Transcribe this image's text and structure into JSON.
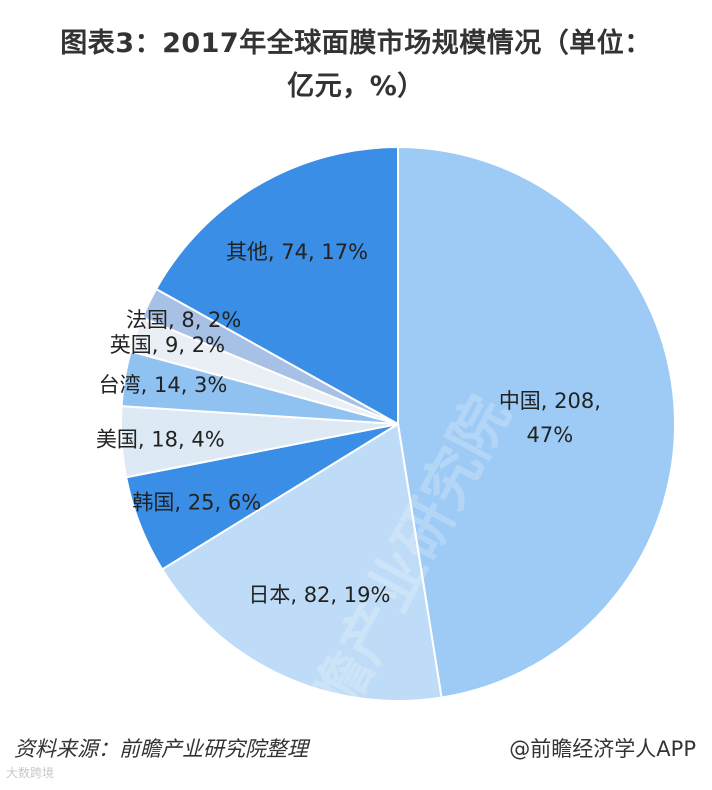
{
  "title": {
    "line1": "图表3：2017年全球面膜市场规模情况（单位：",
    "line2": "亿元，%）"
  },
  "chart_data": {
    "type": "pie",
    "unit": "亿元",
    "slices": [
      {
        "label": "中国",
        "value": 208,
        "percent": "47%",
        "color": "#9ecbf5"
      },
      {
        "label": "日本",
        "value": 82,
        "percent": "19%",
        "color": "#bedcf7"
      },
      {
        "label": "韩国",
        "value": 25,
        "percent": "6%",
        "color": "#3b8ee6"
      },
      {
        "label": "美国",
        "value": 18,
        "percent": "4%",
        "color": "#dde9f4"
      },
      {
        "label": "台湾",
        "value": 14,
        "percent": "3%",
        "color": "#8fc2f0"
      },
      {
        "label": "英国",
        "value": 9,
        "percent": "2%",
        "color": "#eaeff5"
      },
      {
        "label": "法国",
        "value": 8,
        "percent": "2%",
        "color": "#a7c1e6"
      },
      {
        "label": "其他",
        "value": 74,
        "percent": "17%",
        "color": "#3a8ee6"
      }
    ]
  },
  "footer": {
    "source": "资料来源：前瞻产业研究院整理",
    "credit": "@前瞻经济学人APP"
  },
  "watermark": {
    "center": "前瞻产业研究院",
    "corner": "大数跨境"
  }
}
